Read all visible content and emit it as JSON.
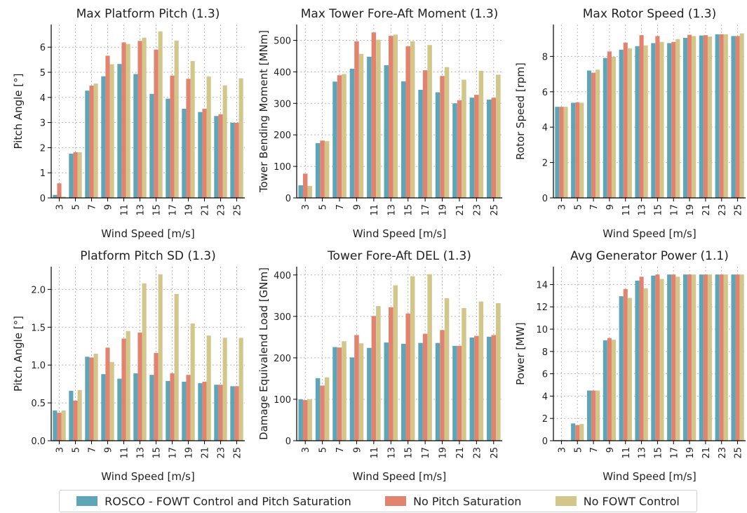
{
  "chart_data": [
    {
      "type": "bar",
      "title": "Max Platform Pitch (1.3)",
      "xlabel": "Wind Speed [m/s]",
      "ylabel": "Pitch Angle [°]",
      "ylim": [
        0,
        6.9
      ],
      "yticks": [
        0,
        1,
        2,
        3,
        4,
        5,
        6
      ],
      "ytick_labels": [
        "0",
        "1",
        "2",
        "3",
        "4",
        "5",
        "6"
      ],
      "categories": [
        "3",
        "5",
        "7",
        "9",
        "11",
        "13",
        "15",
        "17",
        "19",
        "21",
        "23",
        "25"
      ],
      "series": [
        {
          "name": "ROSCO - FOWT Control and Pitch Saturation",
          "values": [
            0.12,
            1.76,
            4.27,
            4.84,
            5.33,
            4.93,
            4.14,
            3.95,
            3.55,
            3.42,
            3.26,
            2.99
          ]
        },
        {
          "name": "No Pitch Saturation",
          "values": [
            0.58,
            1.82,
            4.47,
            5.66,
            6.19,
            6.25,
            5.9,
            4.87,
            4.74,
            3.55,
            3.33,
            2.99
          ]
        },
        {
          "name": "No FOWT Control",
          "values": [
            0.05,
            1.82,
            4.55,
            5.32,
            6.13,
            6.38,
            6.63,
            6.26,
            5.45,
            4.83,
            4.48,
            4.76
          ]
        }
      ],
      "grid": true
    },
    {
      "type": "bar",
      "title": "Max Tower Fore-Aft Moment (1.3)",
      "xlabel": "Wind Speed [m/s]",
      "ylabel": "Tower Bending Moment [MNm]",
      "ylim": [
        0,
        550
      ],
      "yticks": [
        0,
        100,
        200,
        300,
        400,
        500
      ],
      "ytick_labels": [
        "0",
        "100",
        "200",
        "300",
        "400",
        "500"
      ],
      "categories": [
        "3",
        "5",
        "7",
        "9",
        "11",
        "13",
        "15",
        "17",
        "19",
        "21",
        "23",
        "25"
      ],
      "series": [
        {
          "name": "ROSCO - FOWT Control and Pitch Saturation",
          "values": [
            40,
            174,
            369,
            410,
            448,
            421,
            370,
            343,
            335,
            300,
            318,
            312
          ]
        },
        {
          "name": "No Pitch Saturation",
          "values": [
            77,
            182,
            389,
            497,
            525,
            514,
            481,
            405,
            387,
            310,
            327,
            318
          ]
        },
        {
          "name": "No FOWT Control",
          "values": [
            38,
            180,
            393,
            457,
            502,
            518,
            497,
            485,
            415,
            375,
            403,
            391
          ]
        }
      ],
      "grid": true
    },
    {
      "type": "bar",
      "title": "Max Rotor Speed (1.3)",
      "xlabel": "Wind Speed [m/s]",
      "ylabel": "Rotor Speed [rpm]",
      "ylim": [
        0,
        9.8
      ],
      "yticks": [
        0,
        2,
        4,
        6,
        8
      ],
      "ytick_labels": [
        "0",
        "2",
        "4",
        "6",
        "8"
      ],
      "categories": [
        "3",
        "5",
        "7",
        "9",
        "11",
        "13",
        "15",
        "17",
        "19",
        "21",
        "23",
        "25"
      ],
      "series": [
        {
          "name": "ROSCO - FOWT Control and Pitch Saturation",
          "values": [
            5.15,
            5.38,
            7.2,
            7.91,
            8.38,
            8.58,
            8.75,
            8.75,
            9.05,
            9.18,
            9.25,
            9.15
          ]
        },
        {
          "name": "No Pitch Saturation",
          "values": [
            5.15,
            5.4,
            7.08,
            8.28,
            8.78,
            9.2,
            9.15,
            8.82,
            9.22,
            9.2,
            9.25,
            9.15
          ]
        },
        {
          "name": "No FOWT Control",
          "values": [
            5.15,
            5.38,
            7.25,
            7.98,
            8.45,
            8.62,
            8.82,
            8.98,
            9.15,
            9.12,
            9.25,
            9.3
          ]
        }
      ],
      "grid": true
    },
    {
      "type": "bar",
      "title": "Platform Pitch SD (1.3)",
      "xlabel": "Wind Speed [m/s]",
      "ylabel": "Pitch Angle [°]",
      "ylim": [
        0,
        2.3
      ],
      "yticks": [
        0,
        0.5,
        1.0,
        1.5,
        2.0
      ],
      "ytick_labels": [
        "0.0",
        "0.5",
        "1.0",
        "1.5",
        "2.0"
      ],
      "categories": [
        "3",
        "5",
        "7",
        "9",
        "11",
        "13",
        "15",
        "17",
        "19",
        "21",
        "23",
        "25"
      ],
      "series": [
        {
          "name": "ROSCO - FOWT Control and Pitch Saturation",
          "values": [
            0.4,
            0.66,
            1.11,
            0.88,
            0.82,
            0.89,
            0.87,
            0.79,
            0.78,
            0.76,
            0.74,
            0.72
          ]
        },
        {
          "name": "No Pitch Saturation",
          "values": [
            0.37,
            0.53,
            1.1,
            1.23,
            1.35,
            1.43,
            1.16,
            0.89,
            0.87,
            0.78,
            0.74,
            0.72
          ]
        },
        {
          "name": "No FOWT Control",
          "values": [
            0.4,
            0.67,
            1.15,
            1.04,
            1.45,
            2.08,
            2.2,
            1.94,
            1.55,
            1.39,
            1.36,
            1.36
          ]
        }
      ],
      "grid": true
    },
    {
      "type": "bar",
      "title": "Tower Fore-Aft DEL (1.3)",
      "xlabel": "Wind Speed [m/s]",
      "ylabel": "Damage Equivalend Load [GNm]",
      "ylim": [
        0,
        420
      ],
      "yticks": [
        0,
        100,
        200,
        300,
        400
      ],
      "ytick_labels": [
        "0",
        "100",
        "200",
        "300",
        "400"
      ],
      "categories": [
        "3",
        "5",
        "7",
        "9",
        "11",
        "13",
        "15",
        "17",
        "19",
        "21",
        "23",
        "25"
      ],
      "series": [
        {
          "name": "ROSCO - FOWT Control and Pitch Saturation",
          "values": [
            100,
            151,
            226,
            201,
            224,
            237,
            234,
            236,
            236,
            229,
            249,
            251
          ]
        },
        {
          "name": "No Pitch Saturation",
          "values": [
            98,
            133,
            225,
            255,
            301,
            322,
            307,
            258,
            267,
            229,
            253,
            255
          ]
        },
        {
          "name": "No FOWT Control",
          "values": [
            100,
            153,
            240,
            235,
            325,
            375,
            397,
            402,
            344,
            320,
            336,
            332
          ]
        }
      ],
      "grid": true
    },
    {
      "type": "bar",
      "title": "Avg Generator Power (1.1)",
      "xlabel": "Wind Speed [m/s]",
      "ylabel": "Power [MW]",
      "ylim": [
        0,
        15.6
      ],
      "yticks": [
        0,
        2,
        4,
        6,
        8,
        10,
        12,
        14
      ],
      "ytick_labels": [
        "0",
        "2",
        "4",
        "6",
        "8",
        "10",
        "12",
        "14"
      ],
      "categories": [
        "3",
        "5",
        "7",
        "9",
        "11",
        "13",
        "15",
        "17",
        "19",
        "21",
        "23",
        "25"
      ],
      "series": [
        {
          "name": "ROSCO - FOWT Control and Pitch Saturation",
          "values": [
            0.05,
            1.55,
            4.5,
            9.0,
            12.95,
            14.35,
            14.8,
            14.9,
            14.9,
            14.9,
            14.9,
            14.9
          ]
        },
        {
          "name": "No Pitch Saturation",
          "values": [
            0.05,
            1.4,
            4.5,
            9.2,
            13.6,
            14.7,
            14.9,
            14.9,
            14.9,
            14.9,
            14.9,
            14.9
          ]
        },
        {
          "name": "No FOWT Control",
          "values": [
            0.05,
            1.5,
            4.5,
            9.05,
            12.8,
            13.65,
            14.5,
            14.7,
            14.9,
            14.9,
            14.9,
            14.9
          ]
        }
      ],
      "grid": true
    }
  ],
  "legend": {
    "items": [
      {
        "label": "ROSCO - FOWT Control and Pitch Saturation",
        "color": "#5ea6b7"
      },
      {
        "label": "No Pitch Saturation",
        "color": "#e2836f"
      },
      {
        "label": "No FOWT Control",
        "color": "#d2c68b"
      }
    ],
    "placement": "bottom-center"
  },
  "series_colors": [
    "#5ea6b7",
    "#e2836f",
    "#d2c68b"
  ]
}
